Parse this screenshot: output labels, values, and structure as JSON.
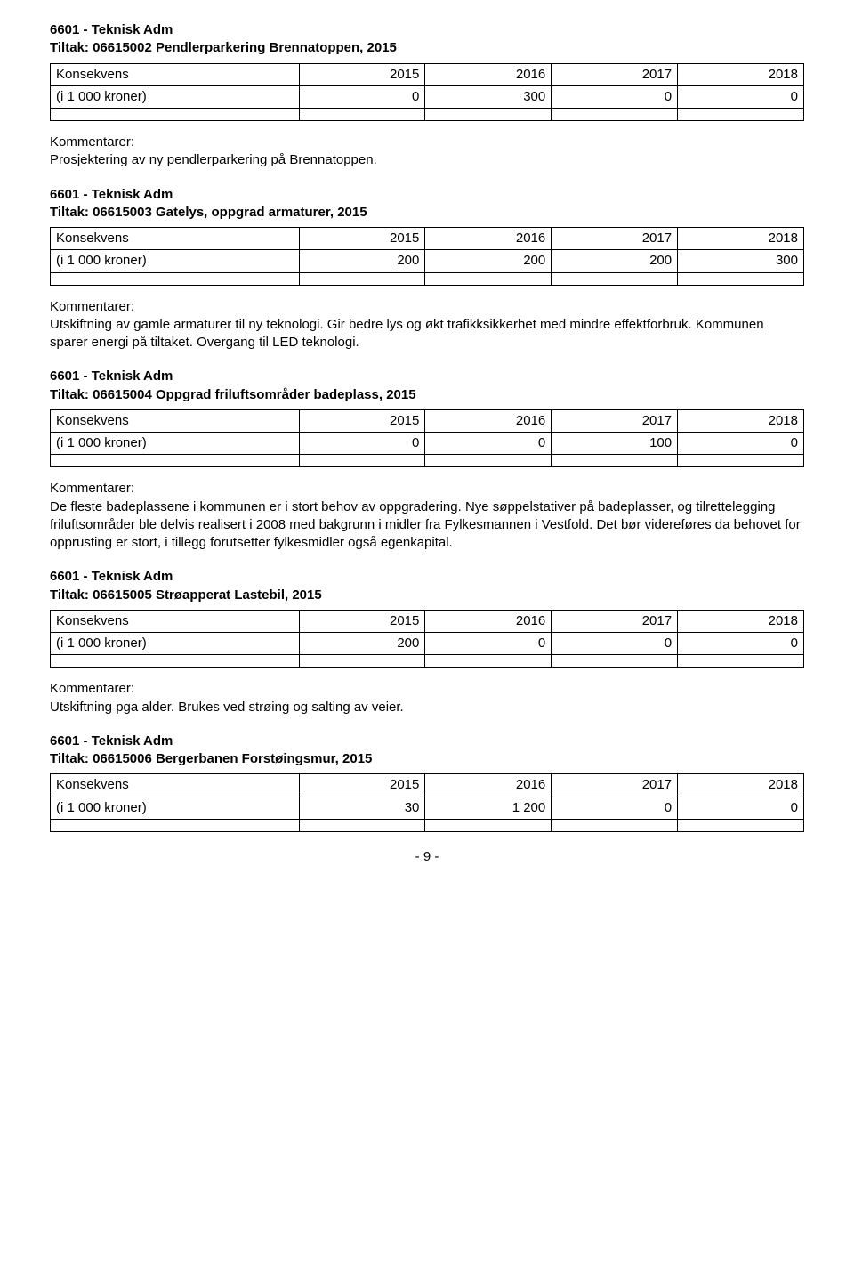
{
  "labels": {
    "konsekvens": "Konsekvens",
    "unit": "(i 1 000 kroner)",
    "kommentarer": "Kommentarer:"
  },
  "years": [
    "2015",
    "2016",
    "2017",
    "2018"
  ],
  "sections": [
    {
      "org": "6601 - Teknisk Adm",
      "tiltak": "Tiltak: 06615002 Pendlerparkering Brennatoppen, 2015",
      "values": [
        "0",
        "300",
        "0",
        "0"
      ],
      "comment": "Prosjektering av ny pendlerparkering på Brennatoppen."
    },
    {
      "org": "6601 - Teknisk Adm",
      "tiltak": "Tiltak: 06615003 Gatelys, oppgrad armaturer, 2015",
      "values": [
        "200",
        "200",
        "200",
        "300"
      ],
      "comment": "Utskiftning av gamle armaturer til ny teknologi. Gir bedre lys og økt trafikksikkerhet med mindre effektforbruk. Kommunen sparer energi på tiltaket. Overgang til LED teknologi."
    },
    {
      "org": "6601 - Teknisk Adm",
      "tiltak": "Tiltak: 06615004 Oppgrad friluftsområder badeplass, 2015",
      "values": [
        "0",
        "0",
        "100",
        "0"
      ],
      "comment": "De fleste badeplassene i kommunen er i stort behov av oppgradering. Nye søppelstativer på badeplasser, og tilrettelegging friluftsområder ble delvis realisert i 2008 med bakgrunn i midler fra Fylkesmannen i Vestfold. Det bør videreføres da behovet for opprusting er stort, i tillegg forutsetter fylkesmidler også egenkapital."
    },
    {
      "org": "6601 - Teknisk Adm",
      "tiltak": "Tiltak: 06615005 Strøapperat Lastebil, 2015",
      "values": [
        "200",
        "0",
        "0",
        "0"
      ],
      "comment": "Utskiftning pga alder. Brukes ved strøing og salting av veier."
    },
    {
      "org": "6601 - Teknisk Adm",
      "tiltak": "Tiltak: 06615006 Bergerbanen Forstøingsmur, 2015",
      "values": [
        "30",
        "1 200",
        "0",
        "0"
      ],
      "comment": null
    }
  ],
  "pageNumber": "- 9 -"
}
